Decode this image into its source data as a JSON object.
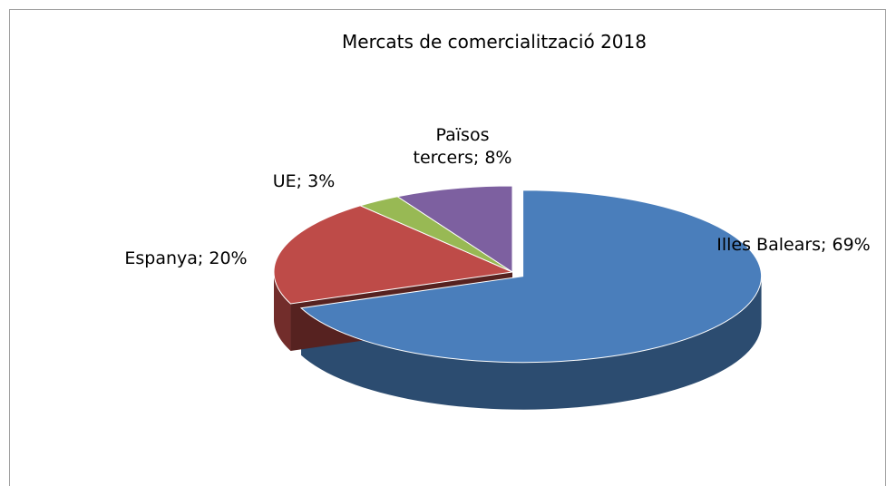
{
  "chart_data": {
    "type": "pie",
    "title": "Mercats de comercialització 2018",
    "categories": [
      "Illes Balears",
      "Espanya",
      "UE",
      "Països tercers"
    ],
    "values": [
      69,
      20,
      3,
      8
    ],
    "value_labels": [
      "Illes Balears; 69%",
      "Espanya; 20%",
      "UE; 3%",
      "Països tercers; 8%"
    ],
    "colors": [
      "#4a7ebb",
      "#be4b48",
      "#98b954",
      "#7d60a0"
    ]
  }
}
